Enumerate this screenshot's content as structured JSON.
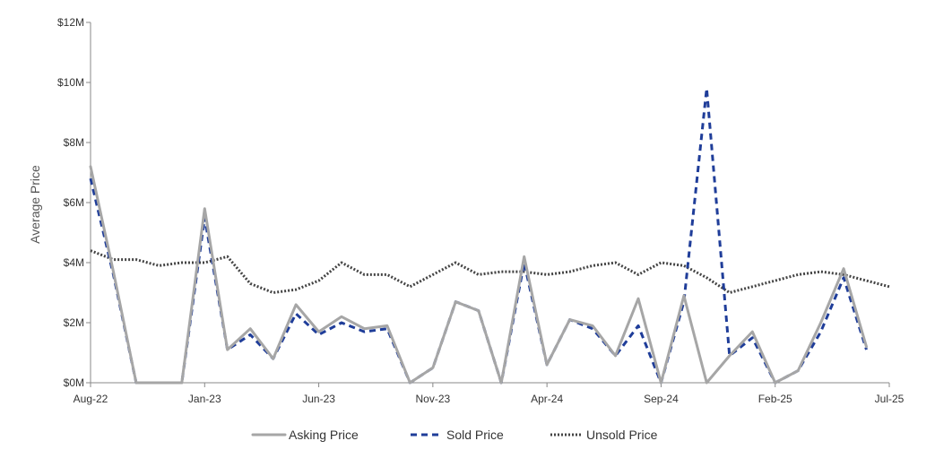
{
  "chart_data": {
    "type": "line",
    "title": "",
    "xlabel": "",
    "ylabel": "Average Price",
    "ylim": [
      0,
      12
    ],
    "y_unit": "$M",
    "y_ticks": [
      {
        "value": 0,
        "label": "$0M"
      },
      {
        "value": 2,
        "label": "$2M"
      },
      {
        "value": 4,
        "label": "$4M"
      },
      {
        "value": 6,
        "label": "$6M"
      },
      {
        "value": 8,
        "label": "$8M"
      },
      {
        "value": 10,
        "label": "$10M"
      },
      {
        "value": 12,
        "label": "$12M"
      }
    ],
    "x": [
      "Aug-22",
      "Sep-22",
      "Oct-22",
      "Nov-22",
      "Dec-22",
      "Jan-23",
      "Feb-23",
      "Mar-23",
      "Apr-23",
      "May-23",
      "Jun-23",
      "Jul-23",
      "Aug-23",
      "Sep-23",
      "Oct-23",
      "Nov-23",
      "Dec-23",
      "Jan-24",
      "Feb-24",
      "Mar-24",
      "Apr-24",
      "May-24",
      "Jun-24",
      "Jul-24",
      "Aug-24",
      "Sep-24",
      "Oct-24",
      "Nov-24",
      "Dec-24",
      "Jan-25",
      "Feb-25",
      "Mar-25",
      "Apr-25",
      "May-25",
      "Jun-25",
      "Jul-25"
    ],
    "x_tick_labels": [
      "Aug-22",
      "Jan-23",
      "Jun-23",
      "Nov-23",
      "Apr-24",
      "Sep-24",
      "Feb-25",
      "Jul-25"
    ],
    "grid": false,
    "legend_position": "bottom",
    "series": [
      {
        "name": "Asking Price",
        "color": "#a6a6a6",
        "style": "solid",
        "values": [
          7.2,
          3.7,
          0,
          0,
          0,
          5.8,
          1.1,
          1.8,
          0.8,
          2.6,
          1.7,
          2.2,
          1.8,
          1.9,
          0,
          0.5,
          2.7,
          2.4,
          0,
          4.2,
          0.6,
          2.1,
          1.9,
          0.9,
          2.8,
          0,
          2.9,
          0,
          0.9,
          1.7,
          0,
          0.4,
          2.0,
          3.8,
          1.2,
          null
        ]
      },
      {
        "name": "Sold Price",
        "color": "#1f3d99",
        "style": "dashed",
        "values": [
          6.8,
          3.6,
          0,
          0,
          0,
          5.5,
          1.1,
          1.6,
          0.8,
          2.3,
          1.6,
          2.0,
          1.7,
          1.8,
          0,
          0.5,
          2.7,
          2.4,
          0,
          4.0,
          0.6,
          2.1,
          1.8,
          0.9,
          1.9,
          0,
          2.7,
          9.8,
          0.9,
          1.5,
          0,
          0.4,
          1.7,
          3.5,
          1.1,
          null
        ]
      },
      {
        "name": "Unsold Price",
        "color": "#444444",
        "style": "dotted",
        "values": [
          4.4,
          4.1,
          4.1,
          3.9,
          4.0,
          4.0,
          4.2,
          3.3,
          3.0,
          3.1,
          3.4,
          4.0,
          3.6,
          3.6,
          3.2,
          3.6,
          4.0,
          3.6,
          3.7,
          3.7,
          3.6,
          3.7,
          3.9,
          4.0,
          3.6,
          4.0,
          3.9,
          3.5,
          3.0,
          3.2,
          3.4,
          3.6,
          3.7,
          3.6,
          3.4,
          3.2
        ]
      }
    ]
  }
}
